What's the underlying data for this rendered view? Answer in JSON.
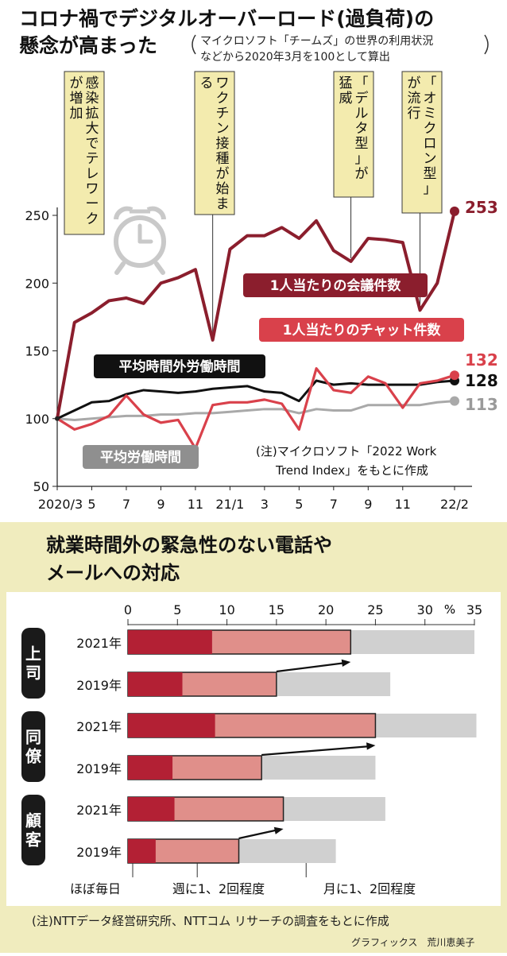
{
  "title_line1": "コロナ禍でデジタルオーバーロード(過負荷)の",
  "title_line2": "懸念が高まった",
  "subtitle_line1": "マイクロソフト「チームズ」の世界の利用状況",
  "subtitle_line2": "などから2020年3月を100として算出",
  "colors": {
    "meetings": "#8b1e2d",
    "chat": "#d9414b",
    "overtime": "#111111",
    "work": "#a9a9a9",
    "callout_bg": "#f3ebae",
    "bar_daily": "#b32034",
    "bar_weekly": "#e08f8a",
    "bar_monthly": "#d0d0d0",
    "section_bg": "#f0ecbe",
    "label_bg": "#1a1a1a"
  },
  "chart_data": [
    {
      "type": "line",
      "x_tick_labels": [
        "2020/3",
        "5",
        "7",
        "9",
        "11",
        "21/1",
        "3",
        "5",
        "7",
        "9",
        "11",
        "22/2"
      ],
      "x_months": [
        "2020/3",
        "2020/4",
        "2020/5",
        "2020/6",
        "2020/7",
        "2020/8",
        "2020/9",
        "2020/10",
        "2020/11",
        "2020/12",
        "2021/1",
        "2021/2",
        "2021/3",
        "2021/4",
        "2021/5",
        "2021/6",
        "2021/7",
        "2021/8",
        "2021/9",
        "2021/10",
        "2021/11",
        "2021/12",
        "2022/1",
        "2022/2"
      ],
      "ylim": [
        50,
        260
      ],
      "y_ticks": [
        50,
        100,
        150,
        200,
        250
      ],
      "grid": false,
      "series": [
        {
          "name": "1人当たりの会議件数",
          "end_label": "253",
          "color_key": "meetings",
          "values": [
            100,
            171,
            178,
            187,
            189,
            185,
            200,
            204,
            210,
            158,
            225,
            235,
            235,
            241,
            233,
            246,
            224,
            216,
            233,
            232,
            230,
            180,
            200,
            253
          ]
        },
        {
          "name": "1人当たりのチャット件数",
          "end_label": "132",
          "color_key": "chat",
          "values": [
            100,
            92,
            96,
            102,
            117,
            103,
            97,
            99,
            78,
            110,
            112,
            112,
            114,
            111,
            92,
            137,
            121,
            119,
            131,
            126,
            108,
            126,
            128,
            132
          ]
        },
        {
          "name": "平均時間外労働時間",
          "end_label": "128",
          "color_key": "overtime",
          "values": [
            100,
            106,
            112,
            113,
            118,
            121,
            120,
            119,
            120,
            122,
            123,
            124,
            120,
            119,
            113,
            128,
            125,
            126,
            125,
            125,
            125,
            125,
            127,
            128
          ]
        },
        {
          "name": "平均労働時間",
          "end_label": "113",
          "color_key": "work",
          "values": [
            100,
            99,
            100,
            101,
            102,
            102,
            103,
            103,
            104,
            104,
            105,
            106,
            107,
            107,
            104,
            107,
            106,
            106,
            110,
            110,
            110,
            110,
            112,
            113
          ]
        }
      ],
      "annotations": [
        {
          "text": "感染拡大でテレワークが増加",
          "x_month": "2020/3"
        },
        {
          "text": "ワクチン接種が始まる",
          "x_month": "2020/12"
        },
        {
          "text": "「デルタ型」が猛威",
          "x_month": "2021/8"
        },
        {
          "text": "「オミクロン型」が流行",
          "x_month": "2021/12"
        }
      ],
      "note_line1": "(注)マイクロソフト「2022 Work",
      "note_line2": "Trend Index」をもとに作成"
    },
    {
      "type": "bar",
      "title_line1": "就業時間外の緊急性のない電話や",
      "title_line2": "メールへの対応",
      "xlim": [
        0,
        35
      ],
      "x_ticks": [
        0,
        5,
        10,
        15,
        20,
        25,
        30,
        35
      ],
      "unit": "%",
      "groups": [
        {
          "name": "上司",
          "rows": [
            {
              "year": "2021年",
              "daily": 8.5,
              "weekly": 22.5,
              "monthly": 35.0
            },
            {
              "year": "2019年",
              "daily": 5.5,
              "weekly": 15.0,
              "monthly": 26.5
            }
          ]
        },
        {
          "name": "同僚",
          "rows": [
            {
              "year": "2021年",
              "daily": 8.8,
              "weekly": 25.0,
              "monthly": 35.2
            },
            {
              "year": "2019年",
              "daily": 4.5,
              "weekly": 13.5,
              "monthly": 25.0
            }
          ]
        },
        {
          "name": "顧客",
          "rows": [
            {
              "year": "2021年",
              "daily": 4.7,
              "weekly": 15.7,
              "monthly": 26.0
            },
            {
              "year": "2019年",
              "daily": 2.8,
              "weekly": 11.2,
              "monthly": 21.0
            }
          ]
        }
      ],
      "legend": [
        "ほぼ毎日",
        "週に1、2回程度",
        "月に1、2回程度"
      ],
      "note": "(注)NTTデータ経営研究所、NTTコム リサーチの調査をもとに作成"
    }
  ],
  "credit": "グラフィックス　荒川恵美子"
}
